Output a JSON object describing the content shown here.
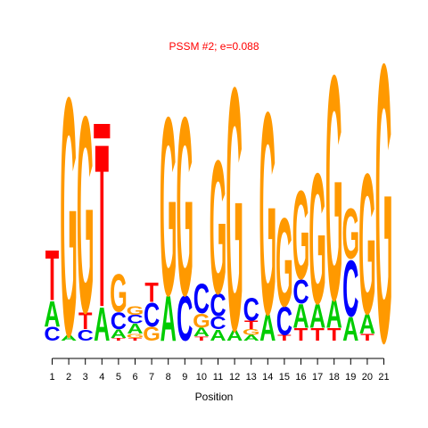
{
  "chart_data": {
    "type": "sequence-logo",
    "title": "PSSM #2; e=0.088",
    "xlabel": "Position",
    "ylabel": "",
    "positions": [
      "1",
      "2",
      "3",
      "4",
      "5",
      "6",
      "7",
      "8",
      "9",
      "10",
      "11",
      "12",
      "13",
      "14",
      "15",
      "16",
      "17",
      "18",
      "19",
      "20",
      "21"
    ],
    "colors": {
      "A": "#00cc00",
      "C": "#0000ff",
      "G": "#ff9900",
      "T": "#ff0000"
    },
    "ylim": [
      0,
      2.0
    ],
    "columns": [
      [
        {
          "letter": "C",
          "height": 0.1
        },
        {
          "letter": "A",
          "height": 0.18
        },
        {
          "letter": "T",
          "height": 0.36
        }
      ],
      [
        {
          "letter": "A",
          "height": 0.04
        },
        {
          "letter": "G",
          "height": 1.7
        }
      ],
      [
        {
          "letter": "C",
          "height": 0.08
        },
        {
          "letter": "T",
          "height": 0.12
        },
        {
          "letter": "G",
          "height": 1.4
        }
      ],
      [
        {
          "letter": "A",
          "height": 0.24
        },
        {
          "letter": "T",
          "height": 1.16
        },
        {
          "letter": "_",
          "height": 0.1
        }
      ],
      [
        {
          "letter": "T",
          "height": 0.02
        },
        {
          "letter": "A",
          "height": 0.06
        },
        {
          "letter": "C",
          "height": 0.12
        },
        {
          "letter": "G",
          "height": 0.27
        }
      ],
      [
        {
          "letter": "T",
          "height": 0.02
        },
        {
          "letter": "G",
          "height": 0.03
        },
        {
          "letter": "A",
          "height": 0.07
        },
        {
          "letter": "C",
          "height": 0.06
        },
        {
          "letter": "G",
          "height": 0.06
        }
      ],
      [
        {
          "letter": "G",
          "height": 0.1
        },
        {
          "letter": "C",
          "height": 0.17
        },
        {
          "letter": "T",
          "height": 0.14
        }
      ],
      [
        {
          "letter": "A",
          "height": 0.32
        },
        {
          "letter": "G",
          "height": 1.27
        }
      ],
      [
        {
          "letter": "C",
          "height": 0.32
        },
        {
          "letter": "G",
          "height": 1.27
        }
      ],
      [
        {
          "letter": "T",
          "height": 0.03
        },
        {
          "letter": "A",
          "height": 0.06
        },
        {
          "letter": "G",
          "height": 0.1
        },
        {
          "letter": "C",
          "height": 0.21
        }
      ],
      [
        {
          "letter": "A",
          "height": 0.08
        },
        {
          "letter": "C",
          "height": 0.09
        },
        {
          "letter": "C",
          "height": 0.16
        },
        {
          "letter": "G",
          "height": 0.95
        }
      ],
      [
        {
          "letter": "A",
          "height": 0.08
        },
        {
          "letter": "G",
          "height": 1.73
        }
      ],
      [
        {
          "letter": "A",
          "height": 0.04
        },
        {
          "letter": "G",
          "height": 0.04
        },
        {
          "letter": "T",
          "height": 0.06
        },
        {
          "letter": "C",
          "height": 0.16
        }
      ],
      [
        {
          "letter": "A",
          "height": 0.19
        },
        {
          "letter": "G",
          "height": 1.44
        }
      ],
      [
        {
          "letter": "T",
          "height": 0.04
        },
        {
          "letter": "C",
          "height": 0.2
        },
        {
          "letter": "G",
          "height": 0.63
        }
      ],
      [
        {
          "letter": "T",
          "height": 0.09
        },
        {
          "letter": "A",
          "height": 0.17
        },
        {
          "letter": "C",
          "height": 0.17
        },
        {
          "letter": "G",
          "height": 0.63
        }
      ],
      [
        {
          "letter": "T",
          "height": 0.09
        },
        {
          "letter": "A",
          "height": 0.17
        },
        {
          "letter": "G",
          "height": 0.93
        }
      ],
      [
        {
          "letter": "T",
          "height": 0.09
        },
        {
          "letter": "A",
          "height": 0.2
        },
        {
          "letter": "G",
          "height": 1.6
        }
      ],
      [
        {
          "letter": "A",
          "height": 0.17
        },
        {
          "letter": "C",
          "height": 0.4
        },
        {
          "letter": "G",
          "height": 0.36
        }
      ],
      [
        {
          "letter": "T",
          "height": 0.05
        },
        {
          "letter": "A",
          "height": 0.14
        },
        {
          "letter": "G",
          "height": 1.0
        }
      ],
      [
        {
          "letter": "G",
          "height": 1.98
        }
      ]
    ]
  }
}
